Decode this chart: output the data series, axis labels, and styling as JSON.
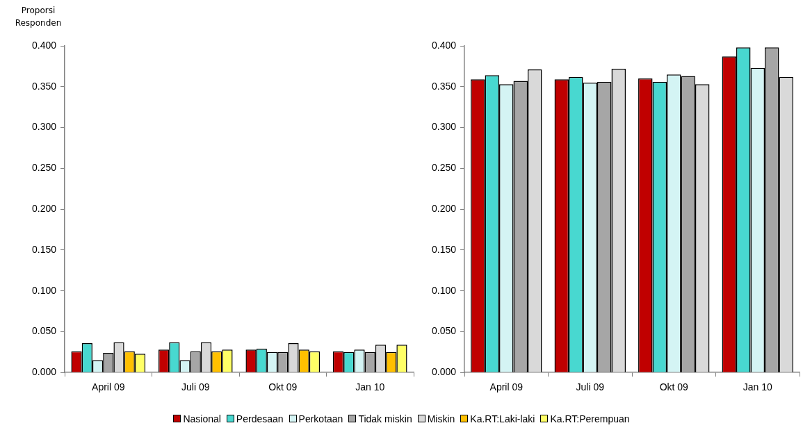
{
  "chart_data": [
    {
      "type": "bar",
      "ylabel": "Proporsi Responden",
      "categories": [
        "April 09",
        "Juli 09",
        "Okt 09",
        "Jan 10"
      ],
      "ylim": [
        0,
        0.4
      ],
      "yticks": [
        {
          "value": 0,
          "label": "0.000"
        },
        {
          "value": 0.05,
          "label": "0.050"
        },
        {
          "value": 0.1,
          "label": "0.100"
        },
        {
          "value": 0.15,
          "label": "0.150"
        },
        {
          "value": 0.2,
          "label": "0.200"
        },
        {
          "value": 0.25,
          "label": "0.250"
        },
        {
          "value": 0.3,
          "label": "0.300"
        },
        {
          "value": 0.35,
          "label": "0.350"
        },
        {
          "value": 0.4,
          "label": "0.400"
        }
      ],
      "grid": false,
      "legend": "bottom",
      "series": [
        {
          "name": "Nasional",
          "color": "#c00000",
          "values": [
            0.026,
            0.028,
            0.028,
            0.026
          ]
        },
        {
          "name": "Perdesaan",
          "color": "#48d8d0",
          "values": [
            0.036,
            0.037,
            0.029,
            0.025
          ]
        },
        {
          "name": "Perkotaan",
          "color": "#d4f4f4",
          "values": [
            0.015,
            0.015,
            0.025,
            0.028
          ]
        },
        {
          "name": "Tidak miskin",
          "color": "#a6a6a6",
          "values": [
            0.024,
            0.026,
            0.025,
            0.025
          ]
        },
        {
          "name": "Miskin",
          "color": "#d9d9d9",
          "values": [
            0.037,
            0.037,
            0.036,
            0.034
          ]
        },
        {
          "name": "Ka.RT:Laki-laki",
          "color": "#ffc000",
          "values": [
            0.026,
            0.026,
            0.028,
            0.025
          ]
        },
        {
          "name": "Ka.RT:Perempuan",
          "color": "#ffff66",
          "values": [
            0.023,
            0.028,
            0.026,
            0.034
          ]
        }
      ]
    },
    {
      "type": "bar",
      "categories": [
        "April 09",
        "Juli 09",
        "Okt 09",
        "Jan 10"
      ],
      "ylim": [
        0,
        0.4
      ],
      "yticks": [
        {
          "value": 0,
          "label": "0.000"
        },
        {
          "value": 0.05,
          "label": "0.050"
        },
        {
          "value": 0.1,
          "label": "0.100"
        },
        {
          "value": 0.15,
          "label": "0.150"
        },
        {
          "value": 0.2,
          "label": "0.200"
        },
        {
          "value": 0.25,
          "label": "0.250"
        },
        {
          "value": 0.3,
          "label": "0.300"
        },
        {
          "value": 0.35,
          "label": "0.350"
        },
        {
          "value": 0.4,
          "label": "0.400"
        }
      ],
      "grid": false,
      "series": [
        {
          "color": "#c00000",
          "values": [
            0.359,
            0.359,
            0.36,
            0.387
          ]
        },
        {
          "color": "#48d8d0",
          "values": [
            0.364,
            0.362,
            0.356,
            0.398
          ]
        },
        {
          "color": "#d4f4f4",
          "values": [
            0.353,
            0.355,
            0.365,
            0.373
          ]
        },
        {
          "color": "#a6a6a6",
          "values": [
            0.357,
            0.356,
            0.363,
            0.398
          ]
        },
        {
          "color": "#d9d9d9",
          "values": [
            0.371,
            0.372,
            0.353,
            0.362
          ]
        }
      ]
    }
  ]
}
